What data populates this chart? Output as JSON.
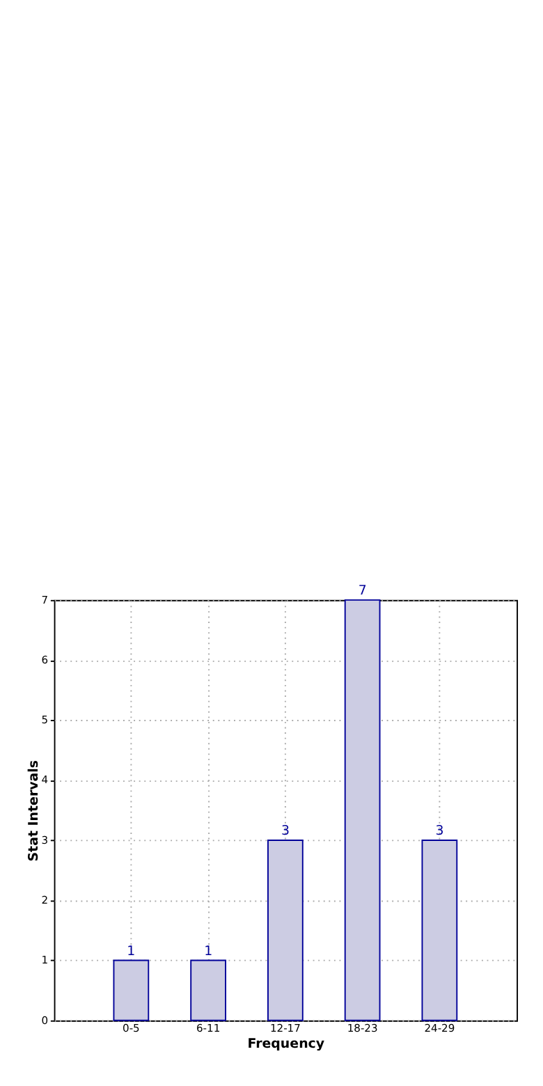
{
  "chart_data": {
    "type": "bar",
    "xlabel": "Frequency",
    "ylabel": "Stat Intervals",
    "categories": [
      "0-5",
      "6-11",
      "12-17",
      "18-23",
      "24-29"
    ],
    "values": [
      1,
      1,
      3,
      7,
      3
    ],
    "color": "#cccce3",
    "ylim": [
      0,
      7
    ],
    "yticks": [
      0,
      1,
      2,
      3,
      4,
      5,
      6,
      7
    ],
    "grid": true,
    "data_labels": true
  }
}
